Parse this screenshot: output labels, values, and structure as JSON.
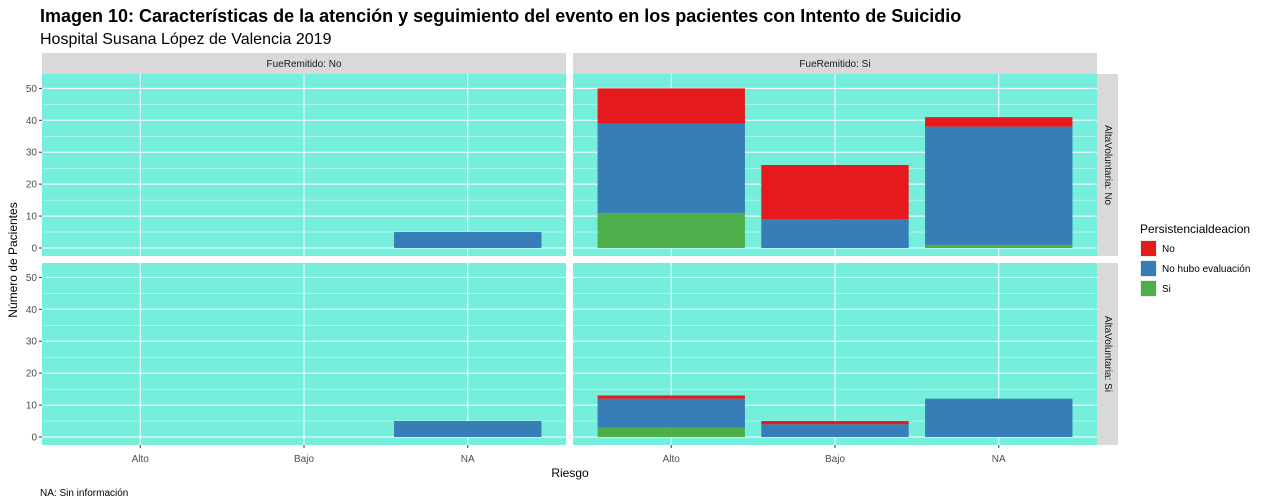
{
  "chart_data": {
    "type": "bar",
    "stacked": true,
    "title": "Imagen 10: Características de la atención y seguimiento del evento en los pacientes con Intento de Suicidio",
    "subtitle": "Hospital Susana López de Valencia 2019",
    "xlabel": "Riesgo",
    "ylabel": "Número de Pacientes",
    "caption": "NA: Sin información",
    "ylim": [
      0,
      52
    ],
    "yticks": [
      0,
      10,
      20,
      30,
      40,
      50
    ],
    "categories": [
      "Alto",
      "Bajo",
      "NA"
    ],
    "facet_cols": [
      "FueRemitido: No",
      "FueRemitido: Si"
    ],
    "facet_rows": [
      "AltaVoluntaria: No",
      "AltaVoluntaria: Si"
    ],
    "legend": {
      "title": "Persistencialdeacion",
      "position": "right",
      "items": [
        {
          "label": "No",
          "color": "#E41A1C"
        },
        {
          "label": "No hubo evaluación",
          "color": "#377EB8"
        },
        {
          "label": "Si",
          "color": "#4DAF4A"
        }
      ]
    },
    "panel_background": "#76EEDC",
    "grid": true,
    "stack_order_bottom_to_top": [
      "Si",
      "No hubo evaluación",
      "No"
    ],
    "panels": [
      {
        "row": 0,
        "col": 0,
        "series": [
          {
            "name": "Si",
            "values": [
              0,
              0,
              0
            ]
          },
          {
            "name": "No hubo evaluación",
            "values": [
              0,
              0,
              5
            ]
          },
          {
            "name": "No",
            "values": [
              0,
              0,
              0
            ]
          }
        ]
      },
      {
        "row": 0,
        "col": 1,
        "series": [
          {
            "name": "Si",
            "values": [
              11,
              0,
              1
            ]
          },
          {
            "name": "No hubo evaluación",
            "values": [
              28,
              9,
              37
            ]
          },
          {
            "name": "No",
            "values": [
              11,
              17,
              3
            ]
          }
        ]
      },
      {
        "row": 1,
        "col": 0,
        "series": [
          {
            "name": "Si",
            "values": [
              0,
              0,
              0
            ]
          },
          {
            "name": "No hubo evaluación",
            "values": [
              0,
              0,
              5
            ]
          },
          {
            "name": "No",
            "values": [
              0,
              0,
              0
            ]
          }
        ]
      },
      {
        "row": 1,
        "col": 1,
        "series": [
          {
            "name": "Si",
            "values": [
              3,
              0,
              0
            ]
          },
          {
            "name": "No hubo evaluación",
            "values": [
              9,
              4,
              12
            ]
          },
          {
            "name": "No",
            "values": [
              1,
              1,
              0
            ]
          }
        ]
      }
    ]
  }
}
